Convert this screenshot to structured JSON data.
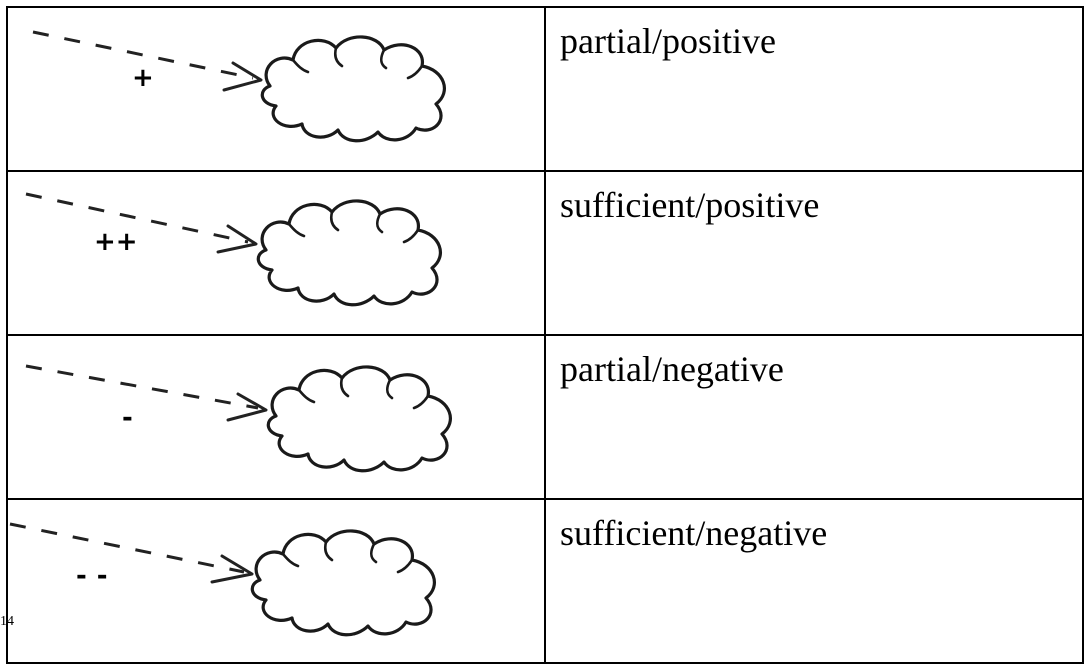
{
  "legend": {
    "rows": [
      {
        "sign": "+",
        "label": "partial/positive"
      },
      {
        "sign": "++",
        "label": "sufficient/positive"
      },
      {
        "sign": "-",
        "label": "partial/negative"
      },
      {
        "sign": "--",
        "label": "sufficient/negative"
      }
    ]
  },
  "colors": {
    "line": "#222222",
    "border": "#000000",
    "background": "#ffffff"
  },
  "footer": {
    "mark": "14"
  }
}
